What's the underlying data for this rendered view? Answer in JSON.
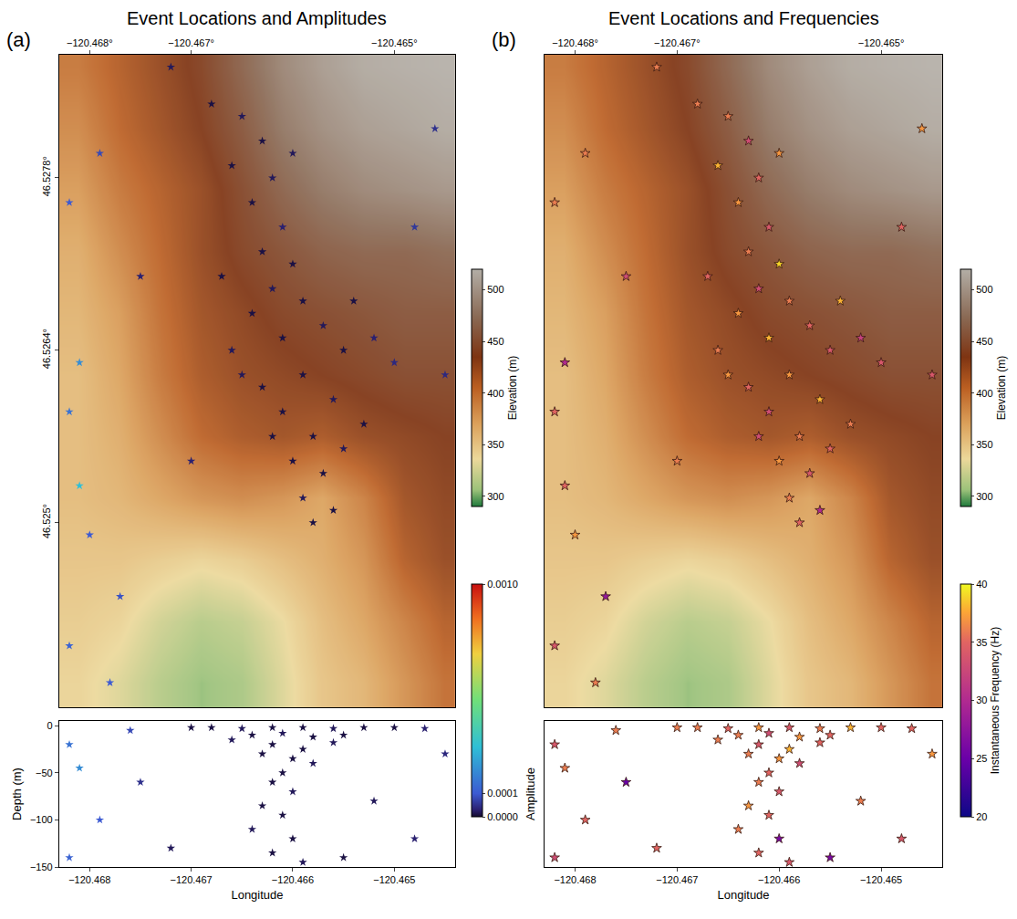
{
  "chart_data": [
    {
      "type": "scatter",
      "panel_label": "(a)",
      "title": "Event Locations and Amplitudes",
      "marker": "star",
      "xlim": [
        -120.4683,
        -120.4644
      ],
      "ylim": [
        46.5235,
        46.5288
      ],
      "xticks": [
        {
          "value": -120.468,
          "label": "−120.468°"
        },
        {
          "value": -120.467,
          "label": "−120.467°"
        },
        {
          "value": -120.465,
          "label": "−120.465°"
        }
      ],
      "yticks": [
        {
          "value": 46.525,
          "label": "46.525°"
        },
        {
          "value": 46.5264,
          "label": "46.5264°"
        },
        {
          "value": 46.5278,
          "label": "46.5278°"
        }
      ],
      "elevation": {
        "label": "Elevation (m)",
        "range": [
          290,
          520
        ],
        "ticks": [
          300,
          350,
          400,
          450,
          500
        ],
        "x": [
          -120.4681,
          -120.4677,
          -120.4673,
          -120.4669,
          -120.4665,
          -120.4661,
          -120.4657,
          -120.4653,
          -120.4649,
          -120.4645
        ],
        "y": [
          46.5237,
          46.5242,
          46.5247,
          46.5252,
          46.5257,
          46.5262,
          46.5267,
          46.5272,
          46.5277,
          46.5282,
          46.5287
        ],
        "z": [
          [
            340,
            330,
            315,
            305,
            310,
            330,
            350,
            360,
            380,
            400
          ],
          [
            345,
            340,
            325,
            315,
            320,
            335,
            355,
            370,
            390,
            410
          ],
          [
            350,
            350,
            345,
            340,
            345,
            355,
            365,
            380,
            410,
            425
          ],
          [
            355,
            360,
            370,
            380,
            385,
            380,
            370,
            390,
            420,
            430
          ],
          [
            355,
            365,
            385,
            405,
            415,
            420,
            415,
            425,
            430,
            435
          ],
          [
            355,
            370,
            395,
            415,
            425,
            430,
            435,
            440,
            445,
            445
          ],
          [
            360,
            375,
            400,
            420,
            430,
            440,
            445,
            450,
            455,
            455
          ],
          [
            365,
            385,
            405,
            425,
            440,
            450,
            460,
            465,
            465,
            470
          ],
          [
            375,
            395,
            410,
            425,
            445,
            465,
            480,
            490,
            495,
            500
          ],
          [
            385,
            405,
            420,
            435,
            455,
            480,
            495,
            505,
            510,
            515
          ],
          [
            395,
            410,
            425,
            440,
            465,
            490,
            505,
            515,
            518,
            520
          ]
        ]
      },
      "colorbar": {
        "range": [
          0,
          0.001
        ],
        "ticks": [
          {
            "value": 0,
            "label": "0.0000"
          },
          {
            "value": 0.0001,
            "label": "0.0001"
          },
          {
            "value": 0.001,
            "label": "0.0010"
          }
        ]
      },
      "x": [
        -120.4665,
        -120.4663,
        -120.4666,
        -120.4662,
        -120.4664,
        -120.4661,
        -120.4663,
        -120.466,
        -120.4662,
        -120.4659,
        -120.4664,
        -120.4657,
        -120.4661,
        -120.4655,
        -120.4666,
        -120.4652,
        -120.4659,
        -120.4663,
        -120.4656,
        -120.4661,
        -120.4658,
        -120.4655,
        -120.466,
        -120.4657,
        -120.4659,
        -120.4656,
        -120.4658,
        -120.4668,
        -120.466,
        -120.4667,
        -120.4654,
        -120.465,
        -120.4653,
        -120.4662,
        -120.4665,
        -120.4682,
        -120.4681,
        -120.4682,
        -120.468,
        -120.4682,
        -120.4679,
        -120.4675,
        -120.4672,
        -120.4648,
        -120.4646,
        -120.4677,
        -120.467,
        -120.4645,
        -120.4681,
        -120.4678
      ],
      "y": [
        46.5283,
        46.5281,
        46.5279,
        46.5278,
        46.5276,
        46.5274,
        46.5272,
        46.5271,
        46.5269,
        46.5268,
        46.5267,
        46.5266,
        46.5265,
        46.5264,
        46.5264,
        46.5265,
        46.5262,
        46.5261,
        46.526,
        46.5259,
        46.5257,
        46.5256,
        46.5255,
        46.5254,
        46.5252,
        46.5251,
        46.525,
        46.5284,
        46.528,
        46.527,
        46.5268,
        46.5263,
        46.5258,
        46.5257,
        46.5262,
        46.5276,
        46.5263,
        46.5259,
        46.5249,
        46.524,
        46.528,
        46.527,
        46.5287,
        46.5274,
        46.5282,
        46.5244,
        46.5255,
        46.5262,
        46.5253,
        46.5237
      ],
      "color_values": [
        2e-05,
        1e-05,
        1e-05,
        2e-05,
        1e-05,
        3e-05,
        1e-05,
        1e-05,
        2e-05,
        1e-05,
        1e-05,
        2e-05,
        1e-05,
        1e-05,
        2e-05,
        3e-05,
        1e-05,
        1e-05,
        2e-05,
        1e-05,
        1e-05,
        2e-05,
        1e-05,
        1e-05,
        2e-05,
        1e-05,
        1e-05,
        1e-05,
        2e-05,
        1e-05,
        1e-05,
        4e-05,
        1e-05,
        1e-05,
        2e-05,
        0.0001,
        0.0002,
        0.00015,
        0.0001,
        0.00012,
        8e-05,
        3e-05,
        2e-05,
        6e-05,
        5e-05,
        9e-05,
        3e-05,
        4e-05,
        0.0003,
        0.0001
      ]
    },
    {
      "type": "scatter",
      "xlabel": "Longitude",
      "ylabel": "Depth (m)",
      "marker": "star",
      "xlim": [
        -120.4683,
        -120.4644
      ],
      "ylim": [
        -150,
        5
      ],
      "xticks": [
        {
          "value": -120.468,
          "label": "−120.468"
        },
        {
          "value": -120.467,
          "label": "−120.467"
        },
        {
          "value": -120.466,
          "label": "−120.466"
        },
        {
          "value": -120.465,
          "label": "−120.465"
        }
      ],
      "yticks": [
        0,
        {
          "value": -50,
          "label": "−50"
        },
        {
          "value": -100,
          "label": "−100"
        },
        {
          "value": -150,
          "label": "−150"
        }
      ],
      "x": [
        -120.4668,
        -120.4665,
        -120.4662,
        -120.4659,
        -120.4656,
        -120.4653,
        -120.465,
        -120.4664,
        -120.4661,
        -120.4658,
        -120.4655,
        -120.4666,
        -120.4662,
        -120.4659,
        -120.4656,
        -120.4663,
        -120.466,
        -120.4658,
        -120.4661,
        -120.4662,
        -120.466,
        -120.4663,
        -120.4661,
        -120.4664,
        -120.466,
        -120.4662,
        -120.4659,
        -120.467,
        -120.4647,
        -120.4675,
        -120.4652,
        -120.4682,
        -120.4681,
        -120.4679,
        -120.4682,
        -120.4676,
        -120.4645,
        -120.4648,
        -120.4672,
        -120.4655
      ],
      "y": [
        -2,
        -3,
        -2,
        -2,
        -3,
        -2,
        -2,
        -10,
        -8,
        -12,
        -10,
        -15,
        -20,
        -25,
        -18,
        -30,
        -35,
        -40,
        -50,
        -60,
        -70,
        -85,
        -95,
        -110,
        -120,
        -135,
        -145,
        -2,
        -3,
        -60,
        -80,
        -20,
        -45,
        -100,
        -140,
        -5,
        -30,
        -120,
        -130,
        -140
      ],
      "color_values": [
        1e-05,
        2e-05,
        1e-05,
        1e-05,
        2e-05,
        1e-05,
        1e-05,
        1e-05,
        2e-05,
        1e-05,
        1e-05,
        2e-05,
        1e-05,
        1e-05,
        2e-05,
        1e-05,
        1e-05,
        2e-05,
        1e-05,
        1e-05,
        2e-05,
        1e-05,
        1e-05,
        2e-05,
        1e-05,
        1e-05,
        2e-05,
        1e-05,
        3e-05,
        5e-05,
        2e-05,
        0.00015,
        0.0002,
        0.0001,
        0.00012,
        8e-05,
        4e-05,
        3e-05,
        2e-05,
        1e-05
      ]
    },
    {
      "type": "scatter",
      "panel_label": "(b)",
      "title": "Event Locations and Frequencies",
      "marker": "star",
      "tick_labels": "x",
      "xlim": [
        -120.4683,
        -120.4644
      ],
      "ylim": [
        46.5235,
        46.5288
      ],
      "xticks": [
        {
          "value": -120.468,
          "label": "−120.468°"
        },
        {
          "value": -120.467,
          "label": "−120.467°"
        },
        {
          "value": -120.465,
          "label": "−120.465°"
        }
      ],
      "elevation": {
        "label": "Elevation (m)",
        "range": [
          290,
          520
        ],
        "ticks": [
          300,
          350,
          400,
          450,
          500
        ],
        "x": [
          -120.4681,
          -120.4677,
          -120.4673,
          -120.4669,
          -120.4665,
          -120.4661,
          -120.4657,
          -120.4653,
          -120.4649,
          -120.4645
        ],
        "y": [
          46.5237,
          46.5242,
          46.5247,
          46.5252,
          46.5257,
          46.5262,
          46.5267,
          46.5272,
          46.5277,
          46.5282,
          46.5287
        ],
        "z": [
          [
            340,
            330,
            315,
            305,
            310,
            330,
            350,
            360,
            380,
            400
          ],
          [
            345,
            340,
            325,
            315,
            320,
            335,
            355,
            370,
            390,
            410
          ],
          [
            350,
            350,
            345,
            340,
            345,
            355,
            365,
            380,
            410,
            425
          ],
          [
            355,
            360,
            370,
            380,
            385,
            380,
            370,
            390,
            420,
            430
          ],
          [
            355,
            365,
            385,
            405,
            415,
            420,
            415,
            425,
            430,
            435
          ],
          [
            355,
            370,
            395,
            415,
            425,
            430,
            435,
            440,
            445,
            445
          ],
          [
            360,
            375,
            400,
            420,
            430,
            440,
            445,
            450,
            455,
            455
          ],
          [
            365,
            385,
            405,
            425,
            440,
            450,
            460,
            465,
            465,
            470
          ],
          [
            375,
            395,
            410,
            425,
            445,
            465,
            480,
            490,
            495,
            500
          ],
          [
            385,
            405,
            420,
            435,
            455,
            480,
            495,
            505,
            510,
            515
          ],
          [
            395,
            410,
            425,
            440,
            465,
            490,
            505,
            515,
            518,
            520
          ]
        ]
      },
      "colorbar": {
        "label": "Instantaneous Frequency (Hz)",
        "range": [
          20,
          40
        ],
        "ticks": [
          20,
          25,
          30,
          35,
          40
        ]
      },
      "x": [
        -120.4665,
        -120.4663,
        -120.4666,
        -120.4662,
        -120.4664,
        -120.4661,
        -120.4663,
        -120.466,
        -120.4662,
        -120.4659,
        -120.4664,
        -120.4657,
        -120.4661,
        -120.4655,
        -120.4666,
        -120.4652,
        -120.4659,
        -120.4663,
        -120.4656,
        -120.4661,
        -120.4658,
        -120.4655,
        -120.466,
        -120.4657,
        -120.4659,
        -120.4656,
        -120.4658,
        -120.4668,
        -120.466,
        -120.4667,
        -120.4654,
        -120.465,
        -120.4653,
        -120.4662,
        -120.4665,
        -120.4682,
        -120.4681,
        -120.4682,
        -120.468,
        -120.4682,
        -120.4679,
        -120.4675,
        -120.4672,
        -120.4648,
        -120.4646,
        -120.4677,
        -120.467,
        -120.4645,
        -120.4681,
        -120.4678
      ],
      "y": [
        46.5283,
        46.5281,
        46.5279,
        46.5278,
        46.5276,
        46.5274,
        46.5272,
        46.5271,
        46.5269,
        46.5268,
        46.5267,
        46.5266,
        46.5265,
        46.5264,
        46.5264,
        46.5265,
        46.5262,
        46.5261,
        46.526,
        46.5259,
        46.5257,
        46.5256,
        46.5255,
        46.5254,
        46.5252,
        46.5251,
        46.525,
        46.5284,
        46.528,
        46.527,
        46.5268,
        46.5263,
        46.5258,
        46.5257,
        46.5262,
        46.5276,
        46.5263,
        46.5259,
        46.5249,
        46.524,
        46.528,
        46.527,
        46.5287,
        46.5274,
        46.5282,
        46.5244,
        46.5255,
        46.5262,
        46.5253,
        46.5237
      ],
      "color_values": [
        36,
        33,
        38,
        35,
        37,
        34,
        36,
        39,
        33,
        36,
        37,
        35,
        38,
        34,
        36,
        32,
        37,
        35,
        38,
        33,
        36,
        35,
        37,
        34,
        36,
        30,
        35,
        36,
        37,
        35,
        38,
        34,
        36,
        33,
        37,
        36,
        30,
        35,
        37,
        34,
        36,
        33,
        36,
        35,
        37,
        28,
        36,
        34,
        35,
        36
      ]
    },
    {
      "type": "scatter",
      "xlabel": "Longitude",
      "ylabel": "Amplitude",
      "marker": "star",
      "tick_labels": "x",
      "xlim": [
        -120.4683,
        -120.4644
      ],
      "ylim": [
        -150,
        5
      ],
      "xticks": [
        {
          "value": -120.468,
          "label": "−120.468"
        },
        {
          "value": -120.467,
          "label": "−120.467"
        },
        {
          "value": -120.466,
          "label": "−120.466"
        },
        {
          "value": -120.465,
          "label": "−120.465"
        }
      ],
      "x": [
        -120.4668,
        -120.4665,
        -120.4662,
        -120.4659,
        -120.4656,
        -120.4653,
        -120.465,
        -120.4664,
        -120.4661,
        -120.4658,
        -120.4655,
        -120.4666,
        -120.4662,
        -120.4659,
        -120.4656,
        -120.4663,
        -120.466,
        -120.4658,
        -120.4661,
        -120.4662,
        -120.466,
        -120.4663,
        -120.4661,
        -120.4664,
        -120.466,
        -120.4662,
        -120.4659,
        -120.467,
        -120.4647,
        -120.4675,
        -120.4652,
        -120.4682,
        -120.4681,
        -120.4679,
        -120.4682,
        -120.4676,
        -120.4645,
        -120.4648,
        -120.4672,
        -120.4655
      ],
      "y": [
        -2,
        -3,
        -2,
        -2,
        -3,
        -2,
        -2,
        -10,
        -8,
        -12,
        -10,
        -15,
        -20,
        -25,
        -18,
        -30,
        -35,
        -40,
        -50,
        -60,
        -70,
        -85,
        -95,
        -110,
        -120,
        -135,
        -145,
        -2,
        -3,
        -60,
        -80,
        -20,
        -45,
        -100,
        -140,
        -5,
        -30,
        -120,
        -130,
        -140
      ],
      "color_values": [
        36,
        35,
        37,
        34,
        36,
        38,
        35,
        36,
        33,
        37,
        35,
        36,
        34,
        38,
        35,
        36,
        37,
        33,
        35,
        36,
        34,
        37,
        35,
        36,
        26,
        35,
        34,
        36,
        35,
        25,
        36,
        34,
        36,
        35,
        33,
        36,
        37,
        34,
        35,
        26
      ]
    }
  ]
}
